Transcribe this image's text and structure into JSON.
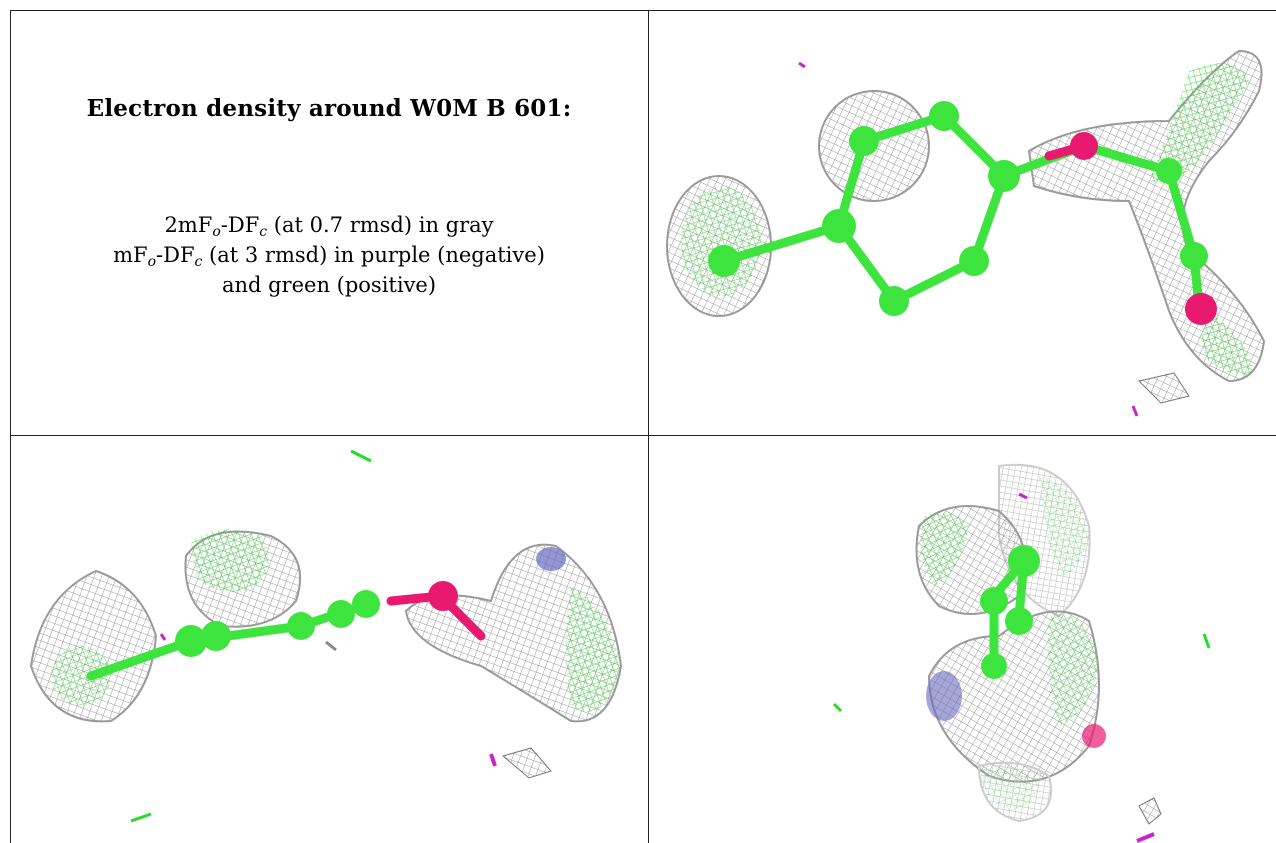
{
  "caption": {
    "title": "Electron density around W0M B 601:",
    "legend_line1_a": "2mF",
    "legend_line1_sub_o": "o",
    "legend_line1_b": "-DF",
    "legend_line1_sub_c": "c",
    "legend_line1_c": " (at 0.7 rmsd) in gray",
    "legend_line2_a": "mF",
    "legend_line2_sub_o": "o",
    "legend_line2_b": "-DF",
    "legend_line2_sub_c": "c",
    "legend_line2_c": " (at 3 rmsd) in purple (negative)",
    "legend_line3": "and green (positive)"
  },
  "colors": {
    "carbon": "#3de43d",
    "oxygen": "#e8196e",
    "nitrogen": "#6a6ac0",
    "mesh_gray": "#9a9a9a",
    "mesh_green": "#22dd22",
    "mesh_purple": "#cc22cc",
    "border": "#222222"
  },
  "views": [
    {
      "name": "view-top-right"
    },
    {
      "name": "view-bottom-left"
    },
    {
      "name": "view-bottom-right"
    }
  ]
}
